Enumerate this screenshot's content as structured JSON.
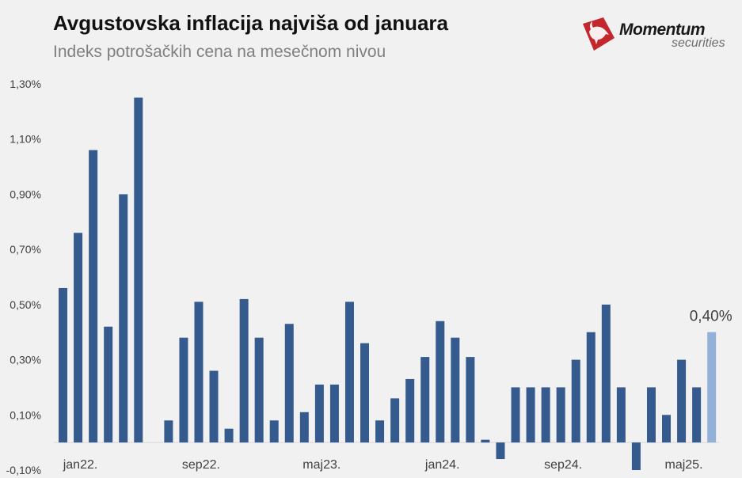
{
  "header": {
    "title": "Avgustovska inflacija najviša od januara",
    "subtitle": "Indeks potrošačkih cena na mesečnom nivou"
  },
  "logo": {
    "word": "Momentum",
    "sub": "securities"
  },
  "colors": {
    "bar": "#345a8e",
    "highlight": "#93b1d8",
    "axis_text": "#404040",
    "label_text": "#404040",
    "grid": "#d9d9d9",
    "logo_red": "#c4262e"
  },
  "chart_data": {
    "type": "bar",
    "title": "Avgustovska inflacija najviša od januara",
    "subtitle": "Indeks potrošačkih cena na mesečnom nivou",
    "xlabel": "",
    "ylabel": "",
    "ylim": [
      -0.1,
      1.3
    ],
    "yticks": [
      -0.1,
      0.1,
      0.3,
      0.5,
      0.7,
      0.9,
      1.1,
      1.3
    ],
    "ytick_labels": [
      "-0,10%",
      "0,10%",
      "0,30%",
      "0,50%",
      "0,70%",
      "0,90%",
      "1,10%",
      "1,30%"
    ],
    "grid": false,
    "categories": [
      "jan22.",
      "feb22.",
      "mar22.",
      "apr22.",
      "maj22.",
      "jun22.",
      "jul22.",
      "avg22.",
      "sep22.",
      "okt22.",
      "nov22.",
      "dec22.",
      "jan23.",
      "feb23.",
      "mar23.",
      "apr23.",
      "maj23.",
      "jun23.",
      "jul23.",
      "avg23.",
      "sep23.",
      "okt23.",
      "nov23.",
      "dec23.",
      "jan24.",
      "feb24.",
      "mar24.",
      "apr24.",
      "maj24.",
      "jun24.",
      "jul24.",
      "avg24.",
      "sep24.",
      "okt24.",
      "nov24.",
      "dec24.",
      "jan25.",
      "feb25.",
      "mar25.",
      "apr25.",
      "maj25.",
      "jun25.",
      "jul25.",
      "avg25."
    ],
    "shown_xticks": [
      "jan22.",
      "sep22.",
      "maj23.",
      "jan24.",
      "sep24.",
      "maj25."
    ],
    "values": [
      0.56,
      0.76,
      1.06,
      0.42,
      0.9,
      1.25,
      0.0,
      0.08,
      0.38,
      0.51,
      0.26,
      0.05,
      0.52,
      0.38,
      0.08,
      0.43,
      0.11,
      0.21,
      0.21,
      0.51,
      0.36,
      0.08,
      0.16,
      0.23,
      0.31,
      0.44,
      0.38,
      0.31,
      0.01,
      -0.06,
      0.2,
      0.2,
      0.2,
      0.2,
      0.3,
      0.4,
      0.5,
      0.2,
      -0.1,
      0.2,
      0.1,
      0.3,
      0.2,
      0.4
    ],
    "highlight_index": 43,
    "data_labels": [
      {
        "index": 43,
        "text": "0,40%"
      }
    ]
  }
}
